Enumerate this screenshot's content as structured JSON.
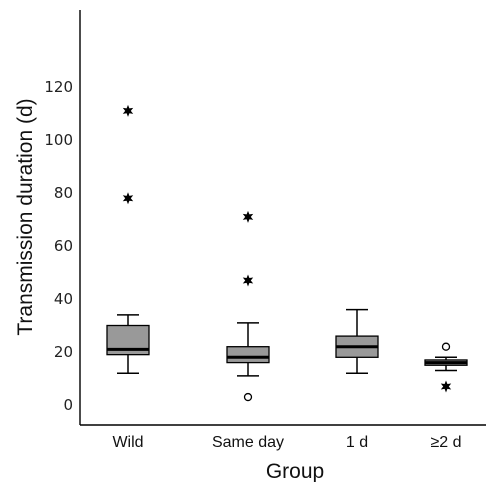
{
  "chart_data": {
    "type": "box",
    "xlabel": "Group",
    "ylabel": "Transmission duration (d)",
    "ylim": [
      0,
      120
    ],
    "yticks": [
      0,
      20,
      40,
      60,
      80,
      100,
      120
    ],
    "grid": false,
    "colors": {
      "box_fill": "#999999",
      "stroke": "#000000"
    },
    "categories": [
      "Wild",
      "Same day",
      "1 d",
      "≥2 d"
    ],
    "boxes": [
      {
        "group": "Wild",
        "whisker_low": 12,
        "q1": 19,
        "median": 21,
        "q3": 30,
        "whisker_high": 34,
        "outliers": [],
        "extremes": [
          78,
          111
        ]
      },
      {
        "group": "Same day",
        "whisker_low": 11,
        "q1": 16,
        "median": 18,
        "q3": 22,
        "whisker_high": 31,
        "outliers": [
          3
        ],
        "extremes": [
          47,
          71
        ]
      },
      {
        "group": "1 d",
        "whisker_low": 12,
        "q1": 18,
        "median": 22,
        "q3": 26,
        "whisker_high": 36,
        "outliers": [],
        "extremes": []
      },
      {
        "group": "≥2 d",
        "whisker_low": 13,
        "q1": 15,
        "median": 16,
        "q3": 17,
        "whisker_high": 18,
        "outliers": [
          22
        ],
        "extremes": [
          7
        ]
      }
    ]
  }
}
